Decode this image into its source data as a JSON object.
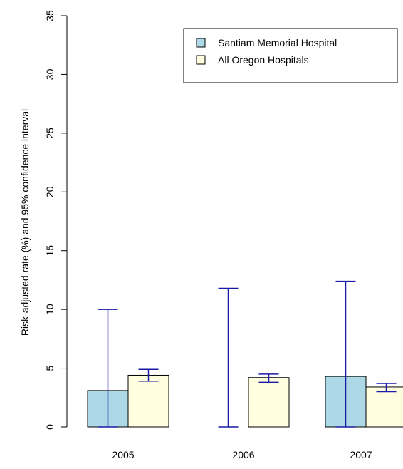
{
  "chart_data": {
    "type": "bar",
    "ylabel": "Risk-adjusted rate (%) and 95% confidence interval",
    "ylim": [
      0,
      35
    ],
    "yticks": [
      0,
      5,
      10,
      15,
      20,
      25,
      30,
      35
    ],
    "categories": [
      "2005",
      "2006",
      "2007"
    ],
    "series": [
      {
        "name": "Santiam Memorial Hospital",
        "color": "#add8e6",
        "values": [
          3.1,
          0,
          4.3
        ],
        "ci_lower": [
          0,
          0,
          0
        ],
        "ci_upper": [
          10.0,
          11.8,
          12.4
        ]
      },
      {
        "name": "All Oregon Hospitals",
        "color": "#ffffe0",
        "values": [
          4.4,
          4.2,
          3.4
        ],
        "ci_lower": [
          3.9,
          3.8,
          3.0
        ],
        "ci_upper": [
          4.9,
          4.5,
          3.7
        ]
      }
    ],
    "error_bar_color": "#1a1aa6",
    "legend_position": "top-right",
    "grid": false
  }
}
